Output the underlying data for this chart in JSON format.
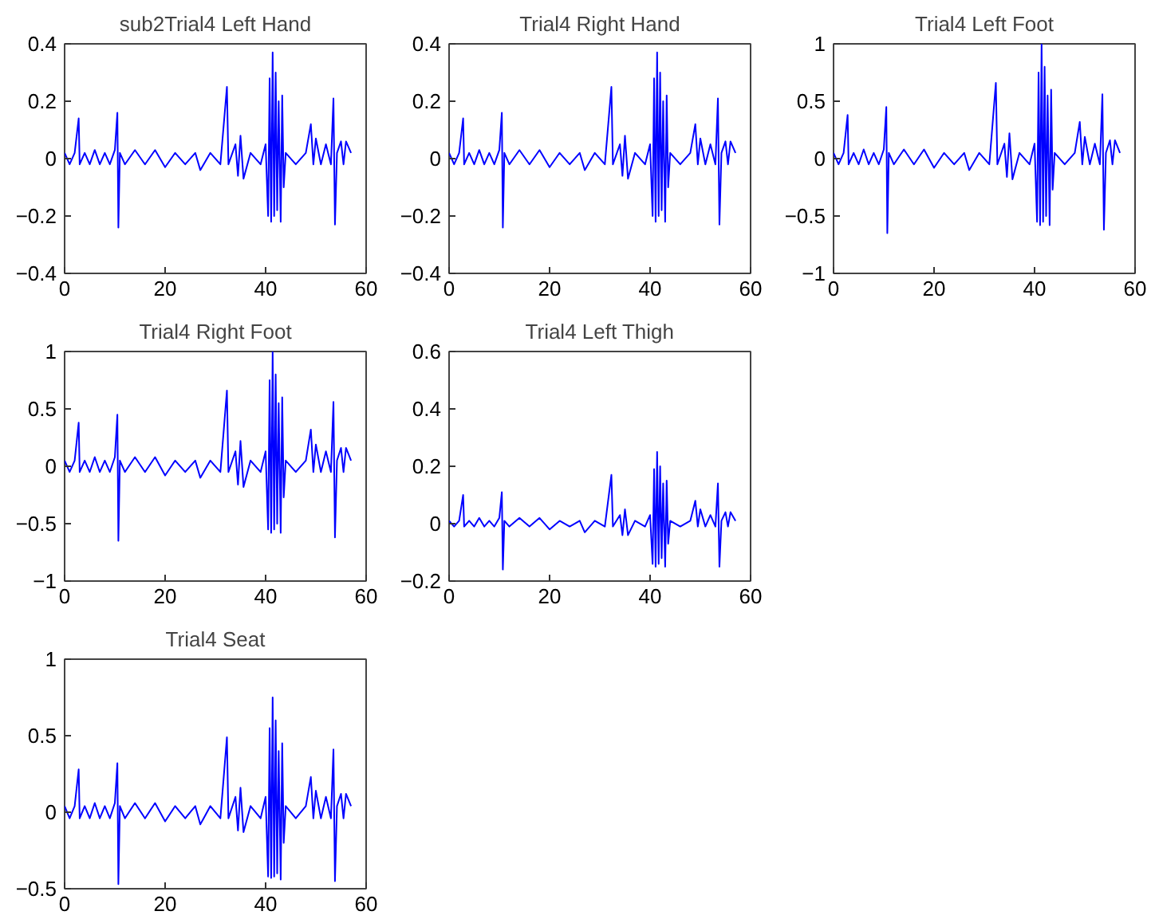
{
  "chart_data": [
    {
      "type": "line",
      "title": "sub2Trial4 Left Hand",
      "grid": false,
      "marker": "none",
      "line_style": "solid",
      "xlim": [
        0,
        60
      ],
      "xticks": [
        0,
        20,
        40,
        60
      ],
      "ylim": [
        -0.4,
        0.4
      ],
      "yticks": [
        -0.4,
        -0.2,
        0,
        0.2,
        0.4
      ],
      "x": [
        0,
        1,
        2,
        2.8,
        3,
        4,
        5,
        6,
        7,
        8,
        9,
        10,
        10.5,
        10.7,
        11,
        12,
        14,
        16,
        18,
        20,
        22,
        24,
        26,
        27,
        29,
        31,
        32.3,
        32.6,
        34,
        34.5,
        35,
        35.6,
        37,
        39,
        40,
        40.5,
        40.8,
        41.1,
        41.4,
        41.7,
        42,
        42.3,
        42.6,
        43,
        43.3,
        43.6,
        44,
        46,
        48,
        49,
        49.5,
        50,
        51,
        52,
        53,
        53.5,
        53.8,
        54.2,
        55,
        55.5,
        56,
        57
      ],
      "series": [
        {
          "color": "#0000ff",
          "values": [
            0.02,
            -0.02,
            0.02,
            0.14,
            -0.02,
            0.02,
            -0.02,
            0.03,
            -0.02,
            0.02,
            -0.02,
            0.03,
            0.16,
            -0.24,
            0.02,
            -0.02,
            0.03,
            -0.02,
            0.03,
            -0.03,
            0.02,
            -0.02,
            0.02,
            -0.04,
            0.02,
            -0.02,
            0.25,
            -0.02,
            0.05,
            -0.06,
            0.08,
            -0.07,
            0.02,
            -0.02,
            0.05,
            -0.2,
            0.28,
            -0.22,
            0.37,
            -0.2,
            0.3,
            -0.18,
            0.2,
            -0.22,
            0.22,
            -0.1,
            0.02,
            -0.02,
            0.02,
            0.12,
            -0.02,
            0.07,
            -0.02,
            0.05,
            -0.02,
            0.21,
            -0.23,
            0.02,
            0.06,
            -0.02,
            0.06,
            0.02
          ]
        }
      ]
    },
    {
      "type": "line",
      "title": "Trial4 Right Hand",
      "grid": false,
      "marker": "none",
      "line_style": "solid",
      "xlim": [
        0,
        60
      ],
      "xticks": [
        0,
        20,
        40,
        60
      ],
      "ylim": [
        -0.4,
        0.4
      ],
      "yticks": [
        -0.4,
        -0.2,
        0,
        0.2,
        0.4
      ],
      "x": [
        0,
        1,
        2,
        2.8,
        3,
        4,
        5,
        6,
        7,
        8,
        9,
        10,
        10.5,
        10.7,
        11,
        12,
        14,
        16,
        18,
        20,
        22,
        24,
        26,
        27,
        29,
        31,
        32.3,
        32.6,
        34,
        34.5,
        35,
        35.6,
        37,
        39,
        40,
        40.5,
        40.8,
        41.1,
        41.4,
        41.7,
        42,
        42.3,
        42.6,
        43,
        43.3,
        43.6,
        44,
        46,
        48,
        49,
        49.5,
        50,
        51,
        52,
        53,
        53.5,
        53.8,
        54.2,
        55,
        55.5,
        56,
        57
      ],
      "series": [
        {
          "color": "#0000ff",
          "values": [
            0.02,
            -0.02,
            0.02,
            0.14,
            -0.02,
            0.02,
            -0.02,
            0.03,
            -0.02,
            0.02,
            -0.02,
            0.03,
            0.16,
            -0.24,
            0.02,
            -0.02,
            0.03,
            -0.02,
            0.03,
            -0.03,
            0.02,
            -0.02,
            0.02,
            -0.04,
            0.02,
            -0.02,
            0.25,
            -0.02,
            0.05,
            -0.06,
            0.08,
            -0.07,
            0.02,
            -0.02,
            0.05,
            -0.2,
            0.28,
            -0.22,
            0.37,
            -0.2,
            0.3,
            -0.18,
            0.2,
            -0.22,
            0.22,
            -0.1,
            0.02,
            -0.02,
            0.02,
            0.12,
            -0.02,
            0.07,
            -0.02,
            0.05,
            -0.02,
            0.21,
            -0.23,
            0.02,
            0.06,
            -0.02,
            0.06,
            0.02
          ]
        }
      ]
    },
    {
      "type": "line",
      "title": "Trial4 Left Foot",
      "grid": false,
      "marker": "none",
      "line_style": "solid",
      "xlim": [
        0,
        60
      ],
      "xticks": [
        0,
        20,
        40,
        60
      ],
      "ylim": [
        -1,
        1
      ],
      "yticks": [
        -1,
        -0.5,
        0,
        0.5,
        1
      ],
      "x": [
        0,
        1,
        2,
        2.8,
        3,
        4,
        5,
        6,
        7,
        8,
        9,
        10,
        10.5,
        10.7,
        11,
        12,
        14,
        16,
        18,
        20,
        22,
        24,
        26,
        27,
        29,
        31,
        32.3,
        32.6,
        34,
        34.5,
        35,
        35.6,
        37,
        39,
        40,
        40.5,
        40.8,
        41.1,
        41.4,
        41.7,
        42,
        42.3,
        42.6,
        43,
        43.3,
        43.6,
        44,
        46,
        48,
        49,
        49.5,
        50,
        51,
        52,
        53,
        53.5,
        53.8,
        54.2,
        55,
        55.5,
        56,
        57
      ],
      "series": [
        {
          "color": "#0000ff",
          "values": [
            0.05,
            -0.05,
            0.05,
            0.38,
            -0.05,
            0.05,
            -0.05,
            0.08,
            -0.05,
            0.05,
            -0.05,
            0.08,
            0.45,
            -0.65,
            0.05,
            -0.05,
            0.08,
            -0.05,
            0.08,
            -0.08,
            0.05,
            -0.05,
            0.05,
            -0.1,
            0.05,
            -0.05,
            0.66,
            -0.05,
            0.13,
            -0.16,
            0.22,
            -0.18,
            0.05,
            -0.05,
            0.13,
            -0.55,
            0.75,
            -0.58,
            1.0,
            -0.55,
            0.8,
            -0.5,
            0.55,
            -0.58,
            0.6,
            -0.27,
            0.05,
            -0.05,
            0.05,
            0.32,
            -0.05,
            0.19,
            -0.05,
            0.13,
            -0.05,
            0.56,
            -0.62,
            0.05,
            0.16,
            -0.05,
            0.16,
            0.05
          ]
        }
      ]
    },
    {
      "type": "line",
      "title": "Trial4 Right Foot",
      "grid": false,
      "marker": "none",
      "line_style": "solid",
      "xlim": [
        0,
        60
      ],
      "xticks": [
        0,
        20,
        40,
        60
      ],
      "ylim": [
        -1,
        1
      ],
      "yticks": [
        -1,
        -0.5,
        0,
        0.5,
        1
      ],
      "x": [
        0,
        1,
        2,
        2.8,
        3,
        4,
        5,
        6,
        7,
        8,
        9,
        10,
        10.5,
        10.7,
        11,
        12,
        14,
        16,
        18,
        20,
        22,
        24,
        26,
        27,
        29,
        31,
        32.3,
        32.6,
        34,
        34.5,
        35,
        35.6,
        37,
        39,
        40,
        40.5,
        40.8,
        41.1,
        41.4,
        41.7,
        42,
        42.3,
        42.6,
        43,
        43.3,
        43.6,
        44,
        46,
        48,
        49,
        49.5,
        50,
        51,
        52,
        53,
        53.5,
        53.8,
        54.2,
        55,
        55.5,
        56,
        57
      ],
      "series": [
        {
          "color": "#0000ff",
          "values": [
            0.05,
            -0.05,
            0.05,
            0.38,
            -0.05,
            0.05,
            -0.05,
            0.08,
            -0.05,
            0.05,
            -0.05,
            0.08,
            0.45,
            -0.65,
            0.05,
            -0.05,
            0.08,
            -0.05,
            0.08,
            -0.08,
            0.05,
            -0.05,
            0.05,
            -0.1,
            0.05,
            -0.05,
            0.66,
            -0.05,
            0.13,
            -0.16,
            0.22,
            -0.18,
            0.05,
            -0.05,
            0.13,
            -0.55,
            0.75,
            -0.58,
            1.0,
            -0.55,
            0.8,
            -0.5,
            0.55,
            -0.58,
            0.6,
            -0.27,
            0.05,
            -0.05,
            0.05,
            0.32,
            -0.05,
            0.19,
            -0.05,
            0.13,
            -0.05,
            0.56,
            -0.62,
            0.05,
            0.16,
            -0.05,
            0.16,
            0.05
          ]
        }
      ]
    },
    {
      "type": "line",
      "title": "Trial4 Left Thigh",
      "grid": false,
      "marker": "none",
      "line_style": "solid",
      "xlim": [
        0,
        60
      ],
      "xticks": [
        0,
        20,
        40,
        60
      ],
      "ylim": [
        -0.2,
        0.6
      ],
      "yticks": [
        -0.2,
        0,
        0.2,
        0.4,
        0.6
      ],
      "x": [
        0,
        1,
        2,
        2.8,
        3,
        4,
        5,
        6,
        7,
        8,
        9,
        10,
        10.5,
        10.7,
        11,
        12,
        14,
        16,
        18,
        20,
        22,
        24,
        26,
        27,
        29,
        31,
        32.3,
        32.6,
        34,
        34.5,
        35,
        35.6,
        37,
        39,
        40,
        40.5,
        40.8,
        41.1,
        41.4,
        41.7,
        42,
        42.3,
        42.6,
        43,
        43.3,
        43.6,
        44,
        46,
        48,
        49,
        49.5,
        50,
        51,
        52,
        53,
        53.5,
        53.8,
        54.2,
        55,
        55.5,
        56,
        57
      ],
      "series": [
        {
          "color": "#0000ff",
          "values": [
            0.01,
            -0.01,
            0.01,
            0.1,
            -0.01,
            0.01,
            -0.01,
            0.02,
            -0.01,
            0.01,
            -0.01,
            0.02,
            0.11,
            -0.16,
            0.01,
            -0.01,
            0.02,
            -0.01,
            0.02,
            -0.02,
            0.01,
            -0.01,
            0.01,
            -0.03,
            0.01,
            -0.01,
            0.17,
            -0.01,
            0.03,
            -0.04,
            0.05,
            -0.04,
            0.01,
            -0.01,
            0.03,
            -0.14,
            0.19,
            -0.15,
            0.25,
            -0.14,
            0.2,
            -0.12,
            0.14,
            -0.15,
            0.15,
            -0.07,
            0.01,
            -0.01,
            0.01,
            0.08,
            -0.01,
            0.05,
            -0.01,
            0.03,
            -0.01,
            0.14,
            -0.15,
            0.01,
            0.04,
            -0.01,
            0.04,
            0.01
          ]
        }
      ]
    },
    {
      "type": "line",
      "title": "Trial4 Seat",
      "grid": false,
      "marker": "none",
      "line_style": "solid",
      "xlim": [
        0,
        60
      ],
      "xticks": [
        0,
        20,
        40,
        60
      ],
      "ylim": [
        -0.5,
        1
      ],
      "yticks": [
        -0.5,
        0,
        0.5,
        1
      ],
      "x": [
        0,
        1,
        2,
        2.8,
        3,
        4,
        5,
        6,
        7,
        8,
        9,
        10,
        10.5,
        10.7,
        11,
        12,
        14,
        16,
        18,
        20,
        22,
        24,
        26,
        27,
        29,
        31,
        32.3,
        32.6,
        34,
        34.5,
        35,
        35.6,
        37,
        39,
        40,
        40.5,
        40.8,
        41.1,
        41.4,
        41.7,
        42,
        42.3,
        42.6,
        43,
        43.3,
        43.6,
        44,
        46,
        48,
        49,
        49.5,
        50,
        51,
        52,
        53,
        53.5,
        53.8,
        54.2,
        55,
        55.5,
        56,
        57
      ],
      "series": [
        {
          "color": "#0000ff",
          "values": [
            0.04,
            -0.04,
            0.04,
            0.28,
            -0.04,
            0.04,
            -0.04,
            0.06,
            -0.04,
            0.04,
            -0.04,
            0.06,
            0.32,
            -0.47,
            0.04,
            -0.04,
            0.06,
            -0.04,
            0.06,
            -0.06,
            0.04,
            -0.04,
            0.04,
            -0.08,
            0.04,
            -0.04,
            0.49,
            -0.04,
            0.1,
            -0.12,
            0.16,
            -0.13,
            0.04,
            -0.04,
            0.1,
            -0.42,
            0.55,
            -0.43,
            0.75,
            -0.42,
            0.6,
            -0.4,
            0.4,
            -0.44,
            0.45,
            -0.2,
            0.04,
            -0.04,
            0.04,
            0.23,
            -0.04,
            0.14,
            -0.04,
            0.1,
            -0.04,
            0.41,
            -0.45,
            0.04,
            0.12,
            -0.04,
            0.12,
            0.04
          ]
        }
      ]
    }
  ]
}
